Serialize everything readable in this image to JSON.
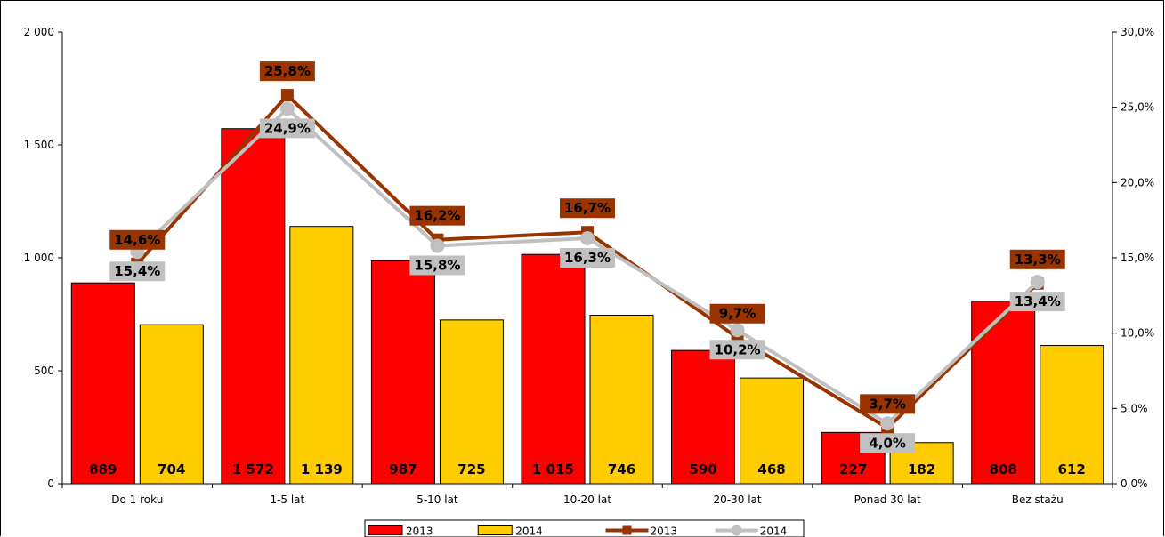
{
  "chart_data": {
    "type": "bar",
    "categories": [
      "Do 1 roku",
      "1-5 lat",
      "5-10 lat",
      "10-20 lat",
      "20-30 lat",
      "Ponad 30 lat",
      "Bez stażu"
    ],
    "series": [
      {
        "name": "2013",
        "kind": "bar",
        "axis": "left",
        "color": "#ff0000",
        "values": [
          889,
          1572,
          987,
          1015,
          590,
          227,
          808
        ],
        "labels": [
          "889",
          "1 572",
          "987",
          "1 015",
          "590",
          "227",
          "808"
        ]
      },
      {
        "name": "2014",
        "kind": "bar",
        "axis": "left",
        "color": "#ffcc00",
        "values": [
          704,
          1139,
          725,
          746,
          468,
          182,
          612
        ],
        "labels": [
          "704",
          "1 139",
          "725",
          "746",
          "468",
          "182",
          "612"
        ]
      },
      {
        "name": "2013",
        "kind": "line",
        "axis": "right",
        "color": "#993300",
        "marker": "square",
        "values": [
          14.6,
          25.8,
          16.2,
          16.7,
          9.7,
          3.7,
          13.3
        ],
        "labels": [
          "14,6%",
          "25,8%",
          "16,2%",
          "16,7%",
          "9,7%",
          "3,7%",
          "13,3%"
        ]
      },
      {
        "name": "2014",
        "kind": "line",
        "axis": "right",
        "color": "#c0c0c0",
        "marker": "circle",
        "values": [
          15.4,
          24.9,
          15.8,
          16.3,
          10.2,
          4.0,
          13.4
        ],
        "labels": [
          "15,4%",
          "24,9%",
          "15,8%",
          "16,3%",
          "10,2%",
          "4,0%",
          "13,4%"
        ]
      }
    ],
    "y_left": {
      "range": [
        0,
        2000
      ],
      "ticks": [
        0,
        500,
        1000,
        1500,
        2000
      ],
      "tick_labels": [
        "0",
        "500",
        "1 000",
        "1 500",
        "2 000"
      ]
    },
    "y_right": {
      "range": [
        0,
        30
      ],
      "ticks": [
        0,
        5,
        10,
        15,
        20,
        25,
        30
      ],
      "tick_labels": [
        "0,0%",
        "5,0%",
        "10,0%",
        "15,0%",
        "20,0%",
        "25,0%",
        "30,0%"
      ]
    },
    "legend": {
      "position": "bottom",
      "entries": [
        "2013",
        "2014",
        "2013",
        "2014"
      ]
    },
    "grid": false
  }
}
